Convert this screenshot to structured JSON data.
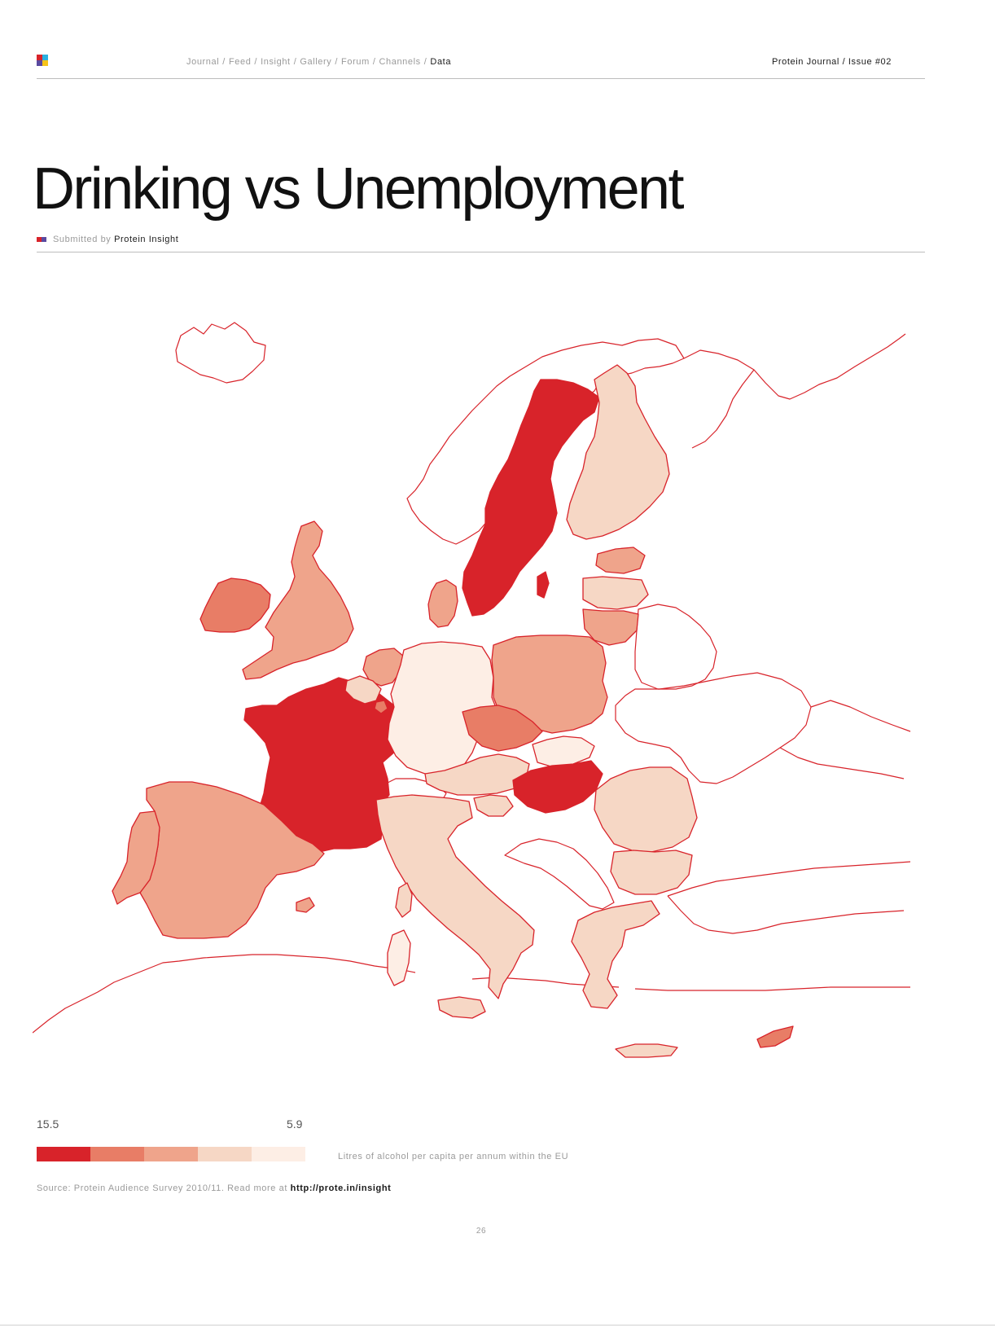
{
  "header": {
    "nav": [
      {
        "label": "Journal"
      },
      {
        "label": "Feed"
      },
      {
        "label": "Insight"
      },
      {
        "label": "Gallery"
      },
      {
        "label": "Forum"
      },
      {
        "label": "Channels"
      },
      {
        "label": "Data",
        "active": true
      }
    ],
    "separator": "/",
    "issue": "Protein Journal / Issue #02"
  },
  "article": {
    "title": "Drinking vs Unemployment",
    "byline_prefix": "Submitted by",
    "byline_author": "Protein Insight"
  },
  "map": {
    "legend": {
      "max_label": "15.5",
      "min_label": "5.9",
      "caption": "Litres of alcohol per capita per annum within the EU",
      "classes": [
        "#d8232a",
        "#e87d66",
        "#efa48b",
        "#f6d7c5",
        "#fdeee5"
      ]
    },
    "outline_color": "#d8232a",
    "countries": [
      {
        "name": "Ireland",
        "class": 1
      },
      {
        "name": "United Kingdom",
        "class": 2
      },
      {
        "name": "France",
        "class": 0
      },
      {
        "name": "Spain",
        "class": 2
      },
      {
        "name": "Portugal",
        "class": 2
      },
      {
        "name": "Sweden",
        "class": 0
      },
      {
        "name": "Finland",
        "class": 3
      },
      {
        "name": "Denmark",
        "class": 2
      },
      {
        "name": "Netherlands",
        "class": 3
      },
      {
        "name": "Belgium",
        "class": 2
      },
      {
        "name": "Luxembourg",
        "class": 2
      },
      {
        "name": "Germany",
        "class": 2
      },
      {
        "name": "Poland",
        "class": 3
      },
      {
        "name": "Czech Republic",
        "class": 1
      },
      {
        "name": "Slovakia",
        "class": 4
      },
      {
        "name": "Austria",
        "class": 2
      },
      {
        "name": "Hungary",
        "class": 1
      },
      {
        "name": "Slovenia",
        "class": 4
      },
      {
        "name": "Italy",
        "class": 3
      },
      {
        "name": "Corsica",
        "class": 0
      },
      {
        "name": "Sardinia",
        "class": 3
      },
      {
        "name": "Sicily",
        "class": 3
      },
      {
        "name": "Romania",
        "class": 3
      },
      {
        "name": "Bulgaria",
        "class": 4
      },
      {
        "name": "Greece",
        "class": 3
      },
      {
        "name": "Crete",
        "class": 3
      },
      {
        "name": "Estonia",
        "class": 3
      },
      {
        "name": "Latvia",
        "class": 3
      },
      {
        "name": "Lithuania",
        "class": 3
      },
      {
        "name": "Cyprus",
        "class": 1
      },
      {
        "name": "Mallorca",
        "class": 2
      },
      {
        "name": "Gotland",
        "class": 0
      }
    ]
  },
  "footer": {
    "source_text": "Source: Protein Audience Survey 2010/11. Read more at",
    "source_link": "http://prote.in/insight",
    "page_number": "26"
  }
}
